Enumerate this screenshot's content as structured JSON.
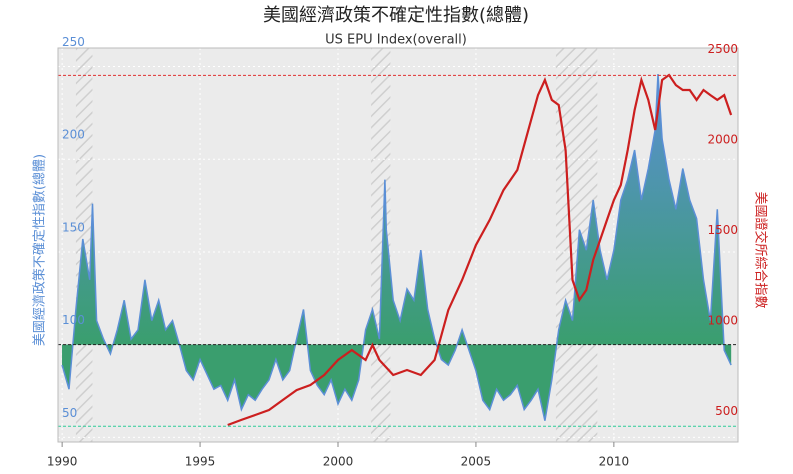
{
  "chart_data": {
    "type": "line",
    "title": "美國經濟政策不確定性指數(總體)",
    "subtitle": "US EPU Index(overall)",
    "ylabel": "美國經濟政策不確定性指數(總體)",
    "y2label": "美國證交所綜合指數",
    "xlim": [
      1989.85,
      2014.5
    ],
    "xticks": [
      1990,
      1995,
      2000,
      2005,
      2010
    ],
    "ylim": [
      47.5,
      260
    ],
    "yticks": [
      50,
      100,
      150,
      200,
      250
    ],
    "y2lim": [
      464,
      2641
    ],
    "y2ticks": [
      500,
      1000,
      1500,
      2000,
      2500
    ],
    "grid": true,
    "shaded_ranges": [
      [
        1990.5,
        1991.1
      ],
      [
        2001.2,
        2001.9
      ],
      [
        2007.9,
        2009.4
      ]
    ],
    "hlines": [
      {
        "value": 100,
        "color": "#222222"
      },
      {
        "value": 56,
        "color": "#2ecc9a"
      },
      {
        "value": 2490,
        "axis": "y2",
        "color": "#e03030"
      }
    ],
    "series": [
      {
        "name": "US EPU Index(overall)",
        "color": "#5b8fd6",
        "fill": "#3a9e6e",
        "baseline": 100,
        "x": [
          1990.0,
          1990.25,
          1990.5,
          1990.75,
          1991.0,
          1991.1,
          1991.25,
          1991.5,
          1991.75,
          1992.0,
          1992.25,
          1992.5,
          1992.75,
          1993.0,
          1993.25,
          1993.5,
          1993.75,
          1994.0,
          1994.25,
          1994.5,
          1994.75,
          1995.0,
          1995.25,
          1995.5,
          1995.75,
          1996.0,
          1996.25,
          1996.5,
          1996.75,
          1997.0,
          1997.25,
          1997.5,
          1997.75,
          1998.0,
          1998.25,
          1998.5,
          1998.75,
          1999.0,
          1999.25,
          1999.5,
          1999.75,
          2000.0,
          2000.25,
          2000.5,
          2000.75,
          2001.0,
          2001.25,
          2001.5,
          2001.7,
          2001.75,
          2002.0,
          2002.25,
          2002.5,
          2002.75,
          2003.0,
          2003.25,
          2003.5,
          2003.75,
          2004.0,
          2004.25,
          2004.5,
          2004.75,
          2005.0,
          2005.25,
          2005.5,
          2005.75,
          2006.0,
          2006.25,
          2006.5,
          2006.75,
          2007.0,
          2007.25,
          2007.5,
          2007.75,
          2008.0,
          2008.25,
          2008.5,
          2008.75,
          2009.0,
          2009.25,
          2009.5,
          2009.75,
          2010.0,
          2010.25,
          2010.5,
          2010.75,
          2011.0,
          2011.25,
          2011.5,
          2011.6,
          2011.75,
          2012.0,
          2012.25,
          2012.5,
          2012.75,
          2013.0,
          2013.25,
          2013.5,
          2013.75,
          2014.0,
          2014.25
        ],
        "values": [
          89,
          76,
          119,
          157,
          135,
          176,
          113,
          103,
          95,
          108,
          124,
          103,
          108,
          135,
          113,
          124,
          108,
          113,
          100,
          86,
          81,
          92,
          84,
          76,
          78,
          70,
          81,
          65,
          73,
          70,
          76,
          81,
          92,
          81,
          86,
          103,
          119,
          86,
          78,
          73,
          81,
          68,
          76,
          70,
          81,
          108,
          119,
          103,
          189,
          162,
          124,
          113,
          130,
          124,
          151,
          119,
          103,
          92,
          89,
          97,
          108,
          97,
          86,
          70,
          65,
          76,
          70,
          73,
          78,
          65,
          70,
          76,
          59,
          81,
          108,
          124,
          113,
          162,
          151,
          178,
          151,
          135,
          151,
          178,
          189,
          205,
          178,
          195,
          216,
          246,
          211,
          189,
          173,
          195,
          178,
          168,
          135,
          113,
          173,
          97,
          89
        ]
      },
      {
        "name": "美國證交所綜合指數",
        "color": "#cc1f1f",
        "axis": "y2",
        "x": [
          1996.0,
          1996.5,
          1997.0,
          1997.5,
          1998.0,
          1998.5,
          1999.0,
          1999.5,
          2000.0,
          2000.5,
          2001.0,
          2001.25,
          2001.5,
          2002.0,
          2002.5,
          2003.0,
          2003.5,
          2004.0,
          2004.5,
          2005.0,
          2005.5,
          2006.0,
          2006.5,
          2007.0,
          2007.25,
          2007.5,
          2007.75,
          2008.0,
          2008.25,
          2008.5,
          2008.75,
          2009.0,
          2009.25,
          2009.5,
          2009.75,
          2010.0,
          2010.25,
          2010.5,
          2010.75,
          2011.0,
          2011.25,
          2011.5,
          2011.75,
          2012.0,
          2012.25,
          2012.5,
          2012.75,
          2013.0,
          2013.25,
          2013.5,
          2013.75,
          2014.0,
          2014.25
        ],
        "values": [
          558,
          586,
          613,
          641,
          696,
          751,
          779,
          834,
          917,
          972,
          917,
          1000,
          917,
          834,
          862,
          834,
          917,
          1193,
          1359,
          1552,
          1691,
          1856,
          1967,
          2243,
          2381,
          2464,
          2354,
          2326,
          2077,
          1359,
          1249,
          1304,
          1470,
          1580,
          1691,
          1801,
          1884,
          2077,
          2298,
          2464,
          2354,
          2188,
          2464,
          2492,
          2436,
          2409,
          2409,
          2354,
          2409,
          2381,
          2354,
          2381,
          2271
        ]
      }
    ]
  }
}
